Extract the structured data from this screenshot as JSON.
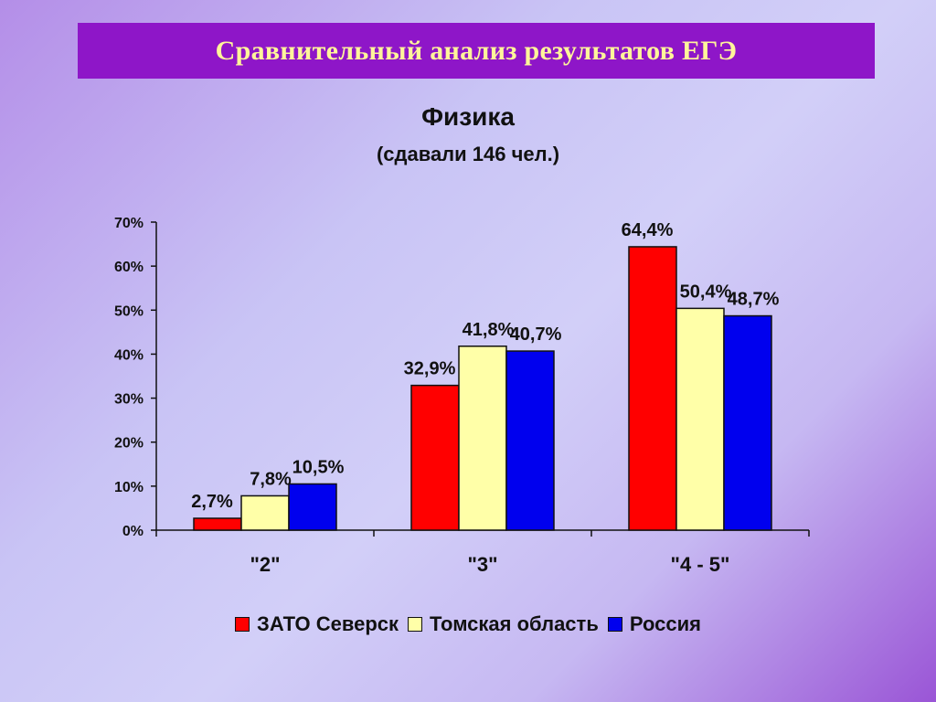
{
  "banner": {
    "title": "Сравнительный анализ результатов ЕГЭ"
  },
  "chart_data": {
    "type": "bar",
    "title": "Физика",
    "subtitle": "(сдавали 146 чел.)",
    "categories": [
      "\"2\"",
      "\"3\"",
      "\"4 - 5\""
    ],
    "series": [
      {
        "name": "ЗАТО Северск",
        "values": [
          2.7,
          32.9,
          64.4
        ],
        "labels": [
          "2,7%",
          "32,9%",
          "64,4%"
        ],
        "color": "#ff0000"
      },
      {
        "name": "Томская область",
        "values": [
          7.8,
          41.8,
          50.4
        ],
        "labels": [
          "7,8%",
          "41,8%",
          "50,4%"
        ],
        "color": "#ffffa8"
      },
      {
        "name": "Россия",
        "values": [
          10.5,
          40.7,
          48.7
        ],
        "labels": [
          "10,5%",
          "40,7%",
          "48,7%"
        ],
        "color": "#0000ee"
      }
    ],
    "yticks": [
      "0%",
      "10%",
      "20%",
      "30%",
      "40%",
      "50%",
      "60%",
      "70%"
    ],
    "ylim": [
      0,
      70
    ],
    "grid": false,
    "legend": "bottom"
  }
}
